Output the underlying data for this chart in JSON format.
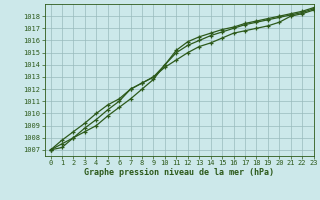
{
  "title": "Graphe pression niveau de la mer (hPa)",
  "background_color": "#cce8ea",
  "grid_color": "#99bbbd",
  "line_color": "#2d5a1b",
  "xlim": [
    -0.5,
    23
  ],
  "ylim": [
    1006.5,
    1019.0
  ],
  "xticks": [
    0,
    1,
    2,
    3,
    4,
    5,
    6,
    7,
    8,
    9,
    10,
    11,
    12,
    13,
    14,
    15,
    16,
    17,
    18,
    19,
    20,
    21,
    22,
    23
  ],
  "yticks": [
    1007,
    1008,
    1009,
    1010,
    1011,
    1012,
    1013,
    1014,
    1015,
    1016,
    1017,
    1018
  ],
  "series1": [
    1007.0,
    1007.8,
    1008.5,
    1009.2,
    1010.0,
    1010.7,
    1011.2,
    1012.0,
    1012.5,
    1013.0,
    1013.8,
    1014.4,
    1015.0,
    1015.5,
    1015.8,
    1016.2,
    1016.6,
    1016.8,
    1017.0,
    1017.2,
    1017.5,
    1018.0,
    1018.2,
    1018.5
  ],
  "series2": [
    1007.0,
    1007.5,
    1008.0,
    1008.8,
    1009.5,
    1010.3,
    1011.0,
    1012.0,
    1012.5,
    1013.0,
    1014.0,
    1015.0,
    1015.6,
    1016.0,
    1016.4,
    1016.7,
    1017.0,
    1017.3,
    1017.5,
    1017.7,
    1017.9,
    1018.1,
    1018.3,
    1018.6
  ],
  "series3": [
    1007.0,
    1007.2,
    1008.0,
    1008.5,
    1009.0,
    1009.8,
    1010.5,
    1011.2,
    1012.0,
    1012.8,
    1014.0,
    1015.2,
    1015.9,
    1016.3,
    1016.6,
    1016.9,
    1017.1,
    1017.4,
    1017.6,
    1017.8,
    1018.0,
    1018.2,
    1018.4,
    1018.7
  ]
}
